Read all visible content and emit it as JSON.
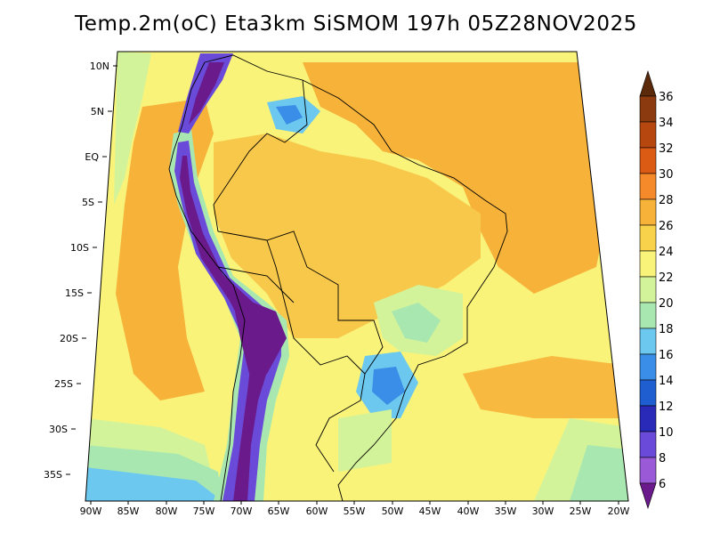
{
  "title": "Temp.2m(oC) Eta3km SiSMOM 197h 05Z28NOV2025",
  "lat_labels": [
    "10N",
    "5N",
    "EQ",
    "5S",
    "10S",
    "15S",
    "20S",
    "25S",
    "30S",
    "35S"
  ],
  "lon_labels": [
    "90W",
    "85W",
    "80W",
    "75W",
    "70W",
    "65W",
    "60W",
    "55W",
    "50W",
    "45W",
    "40W",
    "35W",
    "30W",
    "25W",
    "20W"
  ],
  "colorbar": {
    "values": [
      "36",
      "34",
      "32",
      "30",
      "28",
      "26",
      "24",
      "22",
      "20",
      "18",
      "16",
      "14",
      "12",
      "10",
      "8",
      "6"
    ],
    "colors": [
      "#5a2a0a",
      "#8b3a0f",
      "#b6470f",
      "#db5a14",
      "#f48a2a",
      "#f7b23a",
      "#f7d24a",
      "#f9f37a",
      "#d3f39a",
      "#a8e8b0",
      "#6cc8ef",
      "#3a8ee8",
      "#1e5ed0",
      "#2a2ab8",
      "#6a4ad8",
      "#9a5ad8",
      "#6a1a8a"
    ],
    "unit": "oC"
  },
  "legend_ramp": [
    "#6a1a8a",
    "#9a5ad8",
    "#6a4ad8",
    "#2a2ab8",
    "#1e5ed0",
    "#3a8ee8",
    "#6cc8ef",
    "#a8e8b0",
    "#d3f39a",
    "#f9f37a",
    "#f7d24a",
    "#f7b23a",
    "#f48a2a",
    "#db5a14",
    "#b6470f",
    "#8b3a0f",
    "#5a2a0a"
  ]
}
